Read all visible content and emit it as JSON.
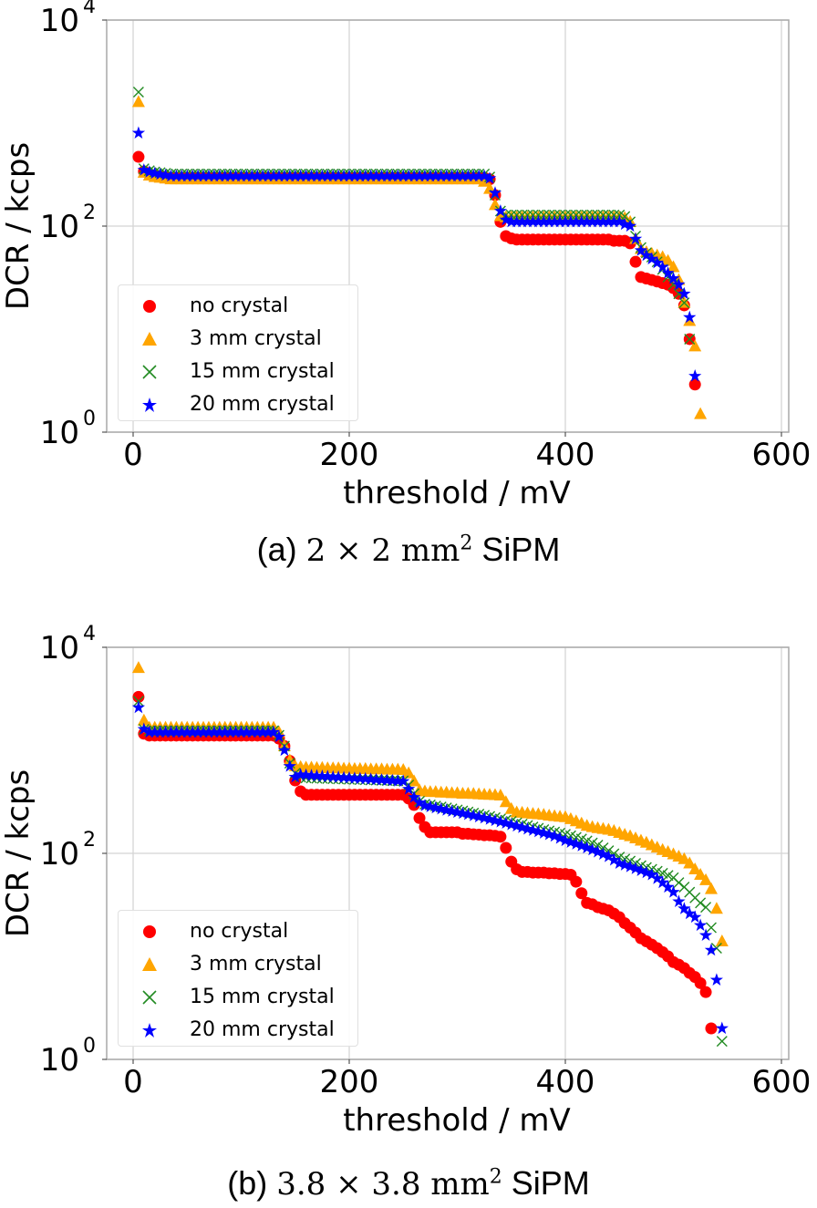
{
  "colors": {
    "no_crystal": "#ff0000",
    "3mm": "#ffa500",
    "15mm": "#228b22",
    "20mm": "#0000ff",
    "grid": "#d3d3d3",
    "axis": "#a9a9a9"
  },
  "legend": [
    "no crystal",
    "3 mm crystal",
    "15 mm crystal",
    "20 mm crystal"
  ],
  "captions": [
    {
      "prefix": "(a)",
      "math": "2 × 2 mm",
      "sup": "2",
      "suffix": "SiPM"
    },
    {
      "prefix": "(b)",
      "math": "3.8 × 3.8 mm",
      "sup": "2",
      "suffix": "SiPM"
    }
  ],
  "chart_data": [
    {
      "type": "scatter",
      "title": "(a) 2 × 2 mm² SiPM",
      "xlabel": "threshold / mV",
      "ylabel": "DCR / kcps",
      "xlim": [
        -20,
        610
      ],
      "ylim": [
        1,
        10000
      ],
      "yscale": "log",
      "grid": true,
      "legend_position": "lower-left",
      "xticks": [
        "0",
        "200",
        "400",
        "600"
      ],
      "xtick_values": [
        0,
        200,
        400,
        600
      ],
      "yticks": [
        {
          "base": "10",
          "exp": "0",
          "value": 1
        },
        {
          "base": "10",
          "exp": "2",
          "value": 100
        },
        {
          "base": "10",
          "exp": "4",
          "value": 10000
        }
      ],
      "x_start": 5,
      "x_step": 5,
      "series": [
        {
          "name": "no crystal",
          "marker": "circle",
          "values": [
            470,
            340,
            320,
            310,
            305,
            300,
            295,
            295,
            295,
            295,
            295,
            295,
            295,
            295,
            295,
            295,
            295,
            295,
            295,
            295,
            295,
            295,
            295,
            295,
            295,
            295,
            295,
            295,
            295,
            295,
            295,
            295,
            295,
            295,
            295,
            295,
            295,
            295,
            295,
            295,
            295,
            295,
            295,
            295,
            295,
            295,
            295,
            295,
            295,
            295,
            295,
            295,
            295,
            295,
            295,
            295,
            295,
            295,
            295,
            295,
            295,
            295,
            295,
            295,
            295,
            285,
            200,
            110,
            80,
            76,
            74,
            74,
            74,
            74,
            74,
            74,
            74,
            74,
            74,
            74,
            74,
            74,
            74,
            74,
            74,
            74,
            74,
            74,
            72,
            72,
            72,
            68,
            45,
            32,
            31,
            30,
            29,
            28,
            27,
            25,
            22,
            17,
            8,
            2.9,
            null
          ]
        },
        {
          "name": "3 mm crystal",
          "marker": "triangle",
          "values": [
            1600,
            330,
            310,
            300,
            295,
            290,
            285,
            285,
            285,
            285,
            285,
            285,
            285,
            285,
            285,
            285,
            285,
            285,
            285,
            285,
            285,
            285,
            285,
            285,
            285,
            285,
            285,
            285,
            285,
            285,
            285,
            285,
            285,
            285,
            285,
            285,
            285,
            285,
            285,
            285,
            285,
            285,
            285,
            285,
            285,
            285,
            285,
            285,
            285,
            285,
            285,
            285,
            285,
            285,
            285,
            285,
            285,
            285,
            285,
            285,
            285,
            285,
            285,
            285,
            270,
            230,
            160,
            125,
            122,
            122,
            122,
            122,
            122,
            122,
            122,
            122,
            122,
            122,
            122,
            122,
            122,
            122,
            122,
            122,
            122,
            122,
            122,
            122,
            122,
            122,
            120,
            110,
            75,
            60,
            56,
            54,
            52,
            50,
            46,
            40,
            30,
            18,
            12,
            6.8,
            1.5
          ]
        },
        {
          "name": "15 mm crystal",
          "marker": "x",
          "values": [
            2000,
            360,
            345,
            335,
            330,
            325,
            320,
            320,
            320,
            320,
            320,
            320,
            320,
            320,
            320,
            320,
            320,
            320,
            320,
            320,
            320,
            320,
            320,
            320,
            320,
            320,
            320,
            320,
            320,
            320,
            320,
            320,
            320,
            320,
            320,
            320,
            320,
            320,
            320,
            320,
            320,
            320,
            320,
            320,
            320,
            320,
            320,
            320,
            320,
            320,
            320,
            320,
            320,
            320,
            320,
            320,
            320,
            320,
            320,
            320,
            320,
            320,
            320,
            320,
            320,
            300,
            200,
            140,
            128,
            128,
            128,
            128,
            128,
            128,
            128,
            128,
            128,
            128,
            128,
            128,
            128,
            128,
            128,
            128,
            128,
            128,
            128,
            128,
            128,
            128,
            124,
            110,
            80,
            62,
            55,
            50,
            45,
            38,
            32,
            27,
            22,
            18,
            8,
            null,
            null
          ]
        },
        {
          "name": "20 mm crystal",
          "marker": "star",
          "values": [
            800,
            350,
            335,
            325,
            318,
            312,
            305,
            305,
            305,
            305,
            305,
            305,
            305,
            305,
            305,
            305,
            305,
            305,
            305,
            305,
            305,
            305,
            305,
            305,
            305,
            305,
            305,
            305,
            305,
            305,
            305,
            305,
            305,
            305,
            305,
            305,
            305,
            305,
            305,
            305,
            305,
            305,
            305,
            305,
            305,
            305,
            305,
            305,
            305,
            305,
            305,
            305,
            305,
            305,
            305,
            305,
            305,
            305,
            305,
            305,
            305,
            305,
            305,
            305,
            305,
            290,
            210,
            140,
            115,
            110,
            110,
            110,
            110,
            110,
            110,
            110,
            110,
            110,
            110,
            110,
            110,
            110,
            110,
            110,
            110,
            110,
            110,
            110,
            110,
            110,
            104,
            100,
            75,
            58,
            52,
            48,
            44,
            40,
            35,
            31,
            27,
            22,
            13,
            3.5,
            null
          ]
        }
      ]
    },
    {
      "type": "scatter",
      "title": "(b) 3.8 × 3.8 mm² SiPM",
      "xlabel": "threshold / mV",
      "ylabel": "DCR / kcps",
      "xlim": [
        -20,
        610
      ],
      "ylim": [
        1,
        10000
      ],
      "yscale": "log",
      "grid": true,
      "legend_position": "lower-left",
      "xticks": [
        "0",
        "200",
        "400",
        "600"
      ],
      "xtick_values": [
        0,
        200,
        400,
        600
      ],
      "yticks": [
        {
          "base": "10",
          "exp": "0",
          "value": 1
        },
        {
          "base": "10",
          "exp": "2",
          "value": 100
        },
        {
          "base": "10",
          "exp": "4",
          "value": 10000
        }
      ],
      "x_start": 5,
      "x_step": 5,
      "series": [
        {
          "name": "no crystal",
          "marker": "circle",
          "values": [
            3300,
            1450,
            1390,
            1390,
            1390,
            1390,
            1390,
            1390,
            1390,
            1390,
            1390,
            1390,
            1390,
            1390,
            1390,
            1390,
            1390,
            1390,
            1390,
            1390,
            1390,
            1390,
            1390,
            1390,
            1390,
            1390,
            1300,
            1100,
            790,
            510,
            400,
            370,
            370,
            370,
            370,
            370,
            370,
            370,
            370,
            370,
            370,
            370,
            370,
            370,
            370,
            370,
            370,
            370,
            370,
            370,
            340,
            295,
            220,
            180,
            160,
            160,
            160,
            160,
            160,
            160,
            155,
            155,
            153,
            152,
            150,
            150,
            148,
            145,
            113,
            83,
            70,
            66,
            66,
            65,
            65,
            65,
            64,
            64,
            63,
            63,
            62,
            53,
            41,
            33,
            32,
            30,
            29,
            28,
            26,
            24,
            21,
            19,
            17,
            15,
            14,
            13,
            12,
            11,
            10,
            8.8,
            8.3,
            7.7,
            6.9,
            6.3,
            5.5,
            4.5,
            2.0,
            null,
            null
          ]
        },
        {
          "name": "3 mm crystal",
          "marker": "triangle",
          "values": [
            6300,
            1950,
            1660,
            1660,
            1660,
            1660,
            1660,
            1660,
            1660,
            1660,
            1660,
            1660,
            1660,
            1660,
            1660,
            1660,
            1660,
            1660,
            1660,
            1660,
            1660,
            1660,
            1660,
            1660,
            1660,
            1660,
            1500,
            1100,
            800,
            700,
            690,
            680,
            680,
            675,
            675,
            670,
            670,
            670,
            665,
            665,
            660,
            660,
            660,
            655,
            655,
            655,
            650,
            650,
            650,
            645,
            600,
            500,
            410,
            400,
            395,
            395,
            390,
            390,
            385,
            385,
            380,
            380,
            378,
            375,
            372,
            370,
            368,
            365,
            315,
            270,
            250,
            248,
            245,
            242,
            240,
            237,
            233,
            230,
            227,
            225,
            215,
            205,
            195,
            185,
            180,
            176,
            173,
            170,
            165,
            158,
            152,
            147,
            140,
            133,
            127,
            120,
            114,
            108,
            103,
            98,
            93,
            88,
            80,
            70,
            62,
            55,
            45,
            29,
            14
          ]
        },
        {
          "name": "15 mm crystal",
          "marker": "x",
          "values": [
            3000,
            1600,
            1550,
            1550,
            1550,
            1550,
            1550,
            1550,
            1550,
            1550,
            1550,
            1550,
            1550,
            1550,
            1550,
            1550,
            1550,
            1550,
            1550,
            1550,
            1550,
            1550,
            1550,
            1550,
            1550,
            1550,
            1400,
            1100,
            750,
            600,
            550,
            540,
            538,
            536,
            534,
            532,
            530,
            528,
            526,
            524,
            522,
            520,
            518,
            516,
            514,
            512,
            510,
            508,
            506,
            505,
            460,
            380,
            320,
            300,
            295,
            288,
            282,
            276,
            270,
            264,
            258,
            252,
            246,
            240,
            234,
            228,
            222,
            216,
            210,
            204,
            198,
            192,
            186,
            180,
            175,
            170,
            165,
            161,
            157,
            153,
            148,
            143,
            138,
            132,
            126,
            120,
            113,
            106,
            99,
            92,
            88,
            84,
            80,
            76,
            73,
            70,
            67,
            64,
            61,
            58,
            52,
            47,
            42,
            37,
            33,
            30,
            19,
            12,
            1.5
          ]
        },
        {
          "name": "20 mm crystal",
          "marker": "star",
          "values": [
            2600,
            1600,
            1500,
            1500,
            1500,
            1500,
            1500,
            1500,
            1500,
            1500,
            1500,
            1500,
            1500,
            1500,
            1500,
            1500,
            1500,
            1500,
            1500,
            1500,
            1500,
            1500,
            1500,
            1500,
            1500,
            1500,
            1350,
            1000,
            700,
            550,
            580,
            575,
            570,
            565,
            560,
            556,
            552,
            548,
            544,
            540,
            536,
            532,
            528,
            524,
            520,
            516,
            512,
            508,
            504,
            500,
            420,
            350,
            310,
            290,
            283,
            276,
            269,
            262,
            256,
            250,
            244,
            238,
            232,
            226,
            220,
            214,
            208,
            202,
            196,
            190,
            184,
            178,
            172,
            167,
            162,
            157,
            152,
            147,
            140,
            133,
            128,
            123,
            118,
            113,
            108,
            103,
            98,
            93,
            86,
            80,
            77,
            74,
            71,
            68,
            65,
            62,
            57,
            52,
            47,
            42,
            34,
            29,
            26,
            24,
            20,
            16,
            11.5,
            5.9,
            2.0
          ]
        }
      ]
    }
  ]
}
